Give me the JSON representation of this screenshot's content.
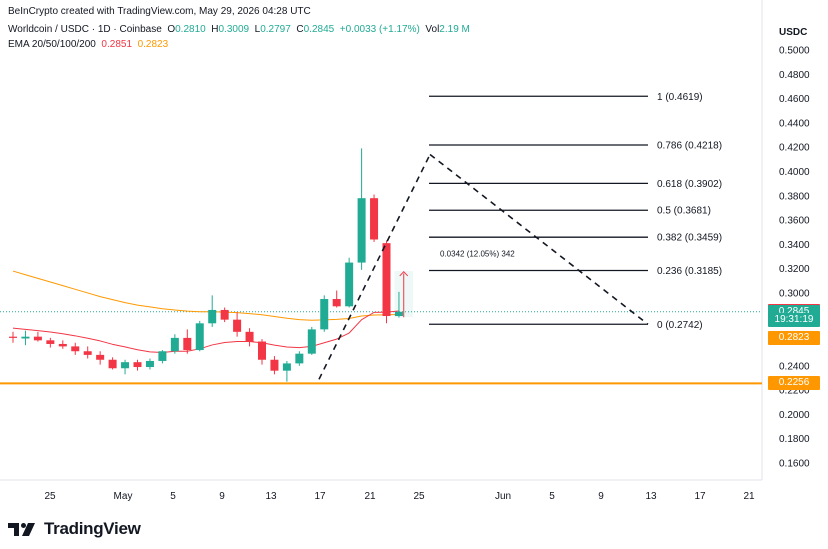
{
  "header": {
    "credit": "BeInCrypto created with TradingView.com, May 29, 2026 04:28 UTC",
    "symbol": "Worldcoin / USDC · 1D · Coinbase",
    "o_label": "O",
    "o_value": "0.2810",
    "h_label": "H",
    "h_value": "0.3009",
    "l_label": "L",
    "l_value": "0.2797",
    "c_label": "C",
    "c_value": "0.2845",
    "change": "+0.0033 (+1.17%)",
    "vol_label": "Vol",
    "vol_value": "2.19 M",
    "ema_label": "EMA 20/50/100/200",
    "ema20_value": "0.2851",
    "ema50_value": "0.2823"
  },
  "currency": "USDC",
  "logo_text": "TradingView",
  "colors": {
    "up": "#22ab94",
    "down": "#f23645",
    "ema20": "#f23645",
    "ema50": "#ff9800",
    "support": "#ff9800",
    "fib": "#131722"
  },
  "chart_data": {
    "type": "candlestick",
    "ylim": [
      0.15,
      0.51
    ],
    "y_ticks": [
      "0.5000",
      "0.4800",
      "0.4600",
      "0.4400",
      "0.4200",
      "0.4000",
      "0.3800",
      "0.3600",
      "0.3400",
      "0.3200",
      "0.3000",
      "0.2800",
      "0.2600",
      "0.2400",
      "0.2200",
      "0.2000",
      "0.1800",
      "0.1600"
    ],
    "x_ticks": [
      "25",
      "May",
      "5",
      "9",
      "13",
      "17",
      "21",
      "25",
      "Jun",
      "5",
      "9",
      "13",
      "17",
      "21"
    ],
    "candles": [
      {
        "o": 0.264,
        "h": 0.268,
        "l": 0.259,
        "c": 0.263
      },
      {
        "o": 0.2625,
        "h": 0.269,
        "l": 0.257,
        "c": 0.264
      },
      {
        "o": 0.264,
        "h": 0.268,
        "l": 0.26,
        "c": 0.261
      },
      {
        "o": 0.261,
        "h": 0.263,
        "l": 0.255,
        "c": 0.258
      },
      {
        "o": 0.258,
        "h": 0.261,
        "l": 0.254,
        "c": 0.256
      },
      {
        "o": 0.256,
        "h": 0.259,
        "l": 0.249,
        "c": 0.252
      },
      {
        "o": 0.252,
        "h": 0.256,
        "l": 0.246,
        "c": 0.249
      },
      {
        "o": 0.249,
        "h": 0.252,
        "l": 0.241,
        "c": 0.245
      },
      {
        "o": 0.245,
        "h": 0.247,
        "l": 0.237,
        "c": 0.238
      },
      {
        "o": 0.238,
        "h": 0.245,
        "l": 0.233,
        "c": 0.243
      },
      {
        "o": 0.243,
        "h": 0.245,
        "l": 0.236,
        "c": 0.239
      },
      {
        "o": 0.239,
        "h": 0.246,
        "l": 0.237,
        "c": 0.244
      },
      {
        "o": 0.244,
        "h": 0.253,
        "l": 0.242,
        "c": 0.252
      },
      {
        "o": 0.252,
        "h": 0.266,
        "l": 0.25,
        "c": 0.263
      },
      {
        "o": 0.263,
        "h": 0.27,
        "l": 0.25,
        "c": 0.253
      },
      {
        "o": 0.253,
        "h": 0.277,
        "l": 0.252,
        "c": 0.275
      },
      {
        "o": 0.275,
        "h": 0.298,
        "l": 0.272,
        "c": 0.286
      },
      {
        "o": 0.286,
        "h": 0.288,
        "l": 0.276,
        "c": 0.278
      },
      {
        "o": 0.278,
        "h": 0.284,
        "l": 0.264,
        "c": 0.268
      },
      {
        "o": 0.268,
        "h": 0.271,
        "l": 0.256,
        "c": 0.26
      },
      {
        "o": 0.26,
        "h": 0.262,
        "l": 0.241,
        "c": 0.245
      },
      {
        "o": 0.245,
        "h": 0.248,
        "l": 0.233,
        "c": 0.236
      },
      {
        "o": 0.236,
        "h": 0.244,
        "l": 0.227,
        "c": 0.242
      },
      {
        "o": 0.242,
        "h": 0.252,
        "l": 0.24,
        "c": 0.25
      },
      {
        "o": 0.25,
        "h": 0.272,
        "l": 0.249,
        "c": 0.27
      },
      {
        "o": 0.27,
        "h": 0.298,
        "l": 0.268,
        "c": 0.295
      },
      {
        "o": 0.295,
        "h": 0.302,
        "l": 0.288,
        "c": 0.289
      },
      {
        "o": 0.289,
        "h": 0.329,
        "l": 0.288,
        "c": 0.325
      },
      {
        "o": 0.325,
        "h": 0.419,
        "l": 0.319,
        "c": 0.378
      },
      {
        "o": 0.378,
        "h": 0.381,
        "l": 0.342,
        "c": 0.344
      },
      {
        "o": 0.341,
        "h": 0.343,
        "l": 0.275,
        "c": 0.281
      },
      {
        "o": 0.281,
        "h": 0.3009,
        "l": 0.2797,
        "c": 0.2845
      }
    ],
    "ema20": [
      0.271,
      0.27,
      0.269,
      0.2678,
      0.2664,
      0.2647,
      0.2627,
      0.2605,
      0.2577,
      0.2556,
      0.2532,
      0.2515,
      0.251,
      0.252,
      0.252,
      0.254,
      0.2572,
      0.2592,
      0.26,
      0.26,
      0.259,
      0.257,
      0.2555,
      0.255,
      0.256,
      0.259,
      0.262,
      0.267,
      0.278,
      0.284,
      0.2842,
      0.2851
    ],
    "ema50": [
      0.318,
      0.315,
      0.312,
      0.309,
      0.306,
      0.303,
      0.3,
      0.297,
      0.2945,
      0.292,
      0.29,
      0.2885,
      0.287,
      0.286,
      0.285,
      0.2845,
      0.2845,
      0.2842,
      0.2838,
      0.283,
      0.282,
      0.2806,
      0.2792,
      0.278,
      0.2775,
      0.2778,
      0.2782,
      0.279,
      0.281,
      0.2818,
      0.282,
      0.2823
    ],
    "support_level": 0.2256,
    "fib_levels": [
      {
        "ratio": "1",
        "price": 0.4619,
        "label": "1 (0.4619)"
      },
      {
        "ratio": "0.786",
        "price": 0.4218,
        "label": "0.786 (0.4218)"
      },
      {
        "ratio": "0.618",
        "price": 0.3902,
        "label": "0.618 (0.3902)"
      },
      {
        "ratio": "0.5",
        "price": 0.3681,
        "label": "0.5 (0.3681)"
      },
      {
        "ratio": "0.382",
        "price": 0.3459,
        "label": "0.382 (0.3459)"
      },
      {
        "ratio": "0.236",
        "price": 0.3185,
        "label": "0.236 (0.3185)"
      },
      {
        "ratio": "0",
        "price": 0.2742,
        "label": "0 (0.2742)"
      }
    ],
    "swing": {
      "low": 0.2256,
      "high": 0.414,
      "target": 0.2742
    },
    "measure_label": "0.0342 (12.05%) 342",
    "price_tags": [
      {
        "text": "0.2851",
        "price": 0.2851,
        "color": "#f23645"
      },
      {
        "text": "0.2845",
        "price": 0.2845,
        "color": "#22ab94"
      },
      {
        "text": "19:31:19",
        "price": 0.278,
        "color": "#22ab94"
      },
      {
        "text": "0.2823",
        "price": 0.2628,
        "color": "#ff9800"
      },
      {
        "text": "0.2256",
        "price": 0.2256,
        "color": "#ff9800"
      }
    ]
  }
}
